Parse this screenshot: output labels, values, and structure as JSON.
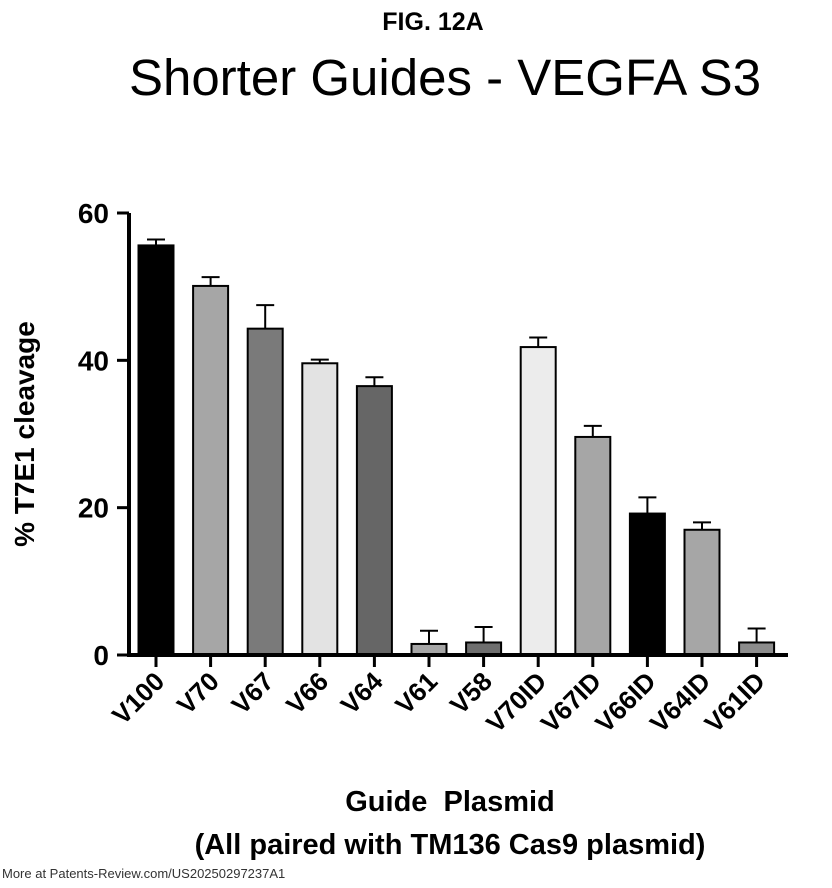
{
  "figure_label": "FIG. 12A",
  "watermark": "More at Patents-Review.com/US20250297237A1",
  "chart_data": {
    "type": "bar",
    "title": "Shorter Guides - VEGFA S3",
    "xlabel": "Guide  Plasmid",
    "xlabel_note": "(All paired with TM136 Cas9 plasmid)",
    "ylabel": "% T7E1 cleavage",
    "ylim": [
      0,
      60
    ],
    "yticks": [
      0,
      20,
      40,
      60
    ],
    "grid": false,
    "categories": [
      "V100",
      "V70",
      "V67",
      "V66",
      "V64",
      "V61",
      "V58",
      "V70ID",
      "V67ID",
      "V66ID",
      "V64ID",
      "V61ID"
    ],
    "values": [
      55.6,
      50.1,
      44.3,
      39.6,
      36.5,
      1.5,
      1.7,
      41.8,
      29.6,
      19.2,
      17.0,
      1.7
    ],
    "errors": [
      0.8,
      1.2,
      3.2,
      0.5,
      1.2,
      1.8,
      2.1,
      1.3,
      1.5,
      2.2,
      1.0,
      1.9
    ],
    "colors": [
      "#000000",
      "#a6a6a6",
      "#7a7a7a",
      "#e3e3e3",
      "#666666",
      "#a6a6a6",
      "#6e6e6e",
      "#ececec",
      "#a6a6a6",
      "#000000",
      "#a6a6a6",
      "#8c8c8c"
    ]
  }
}
